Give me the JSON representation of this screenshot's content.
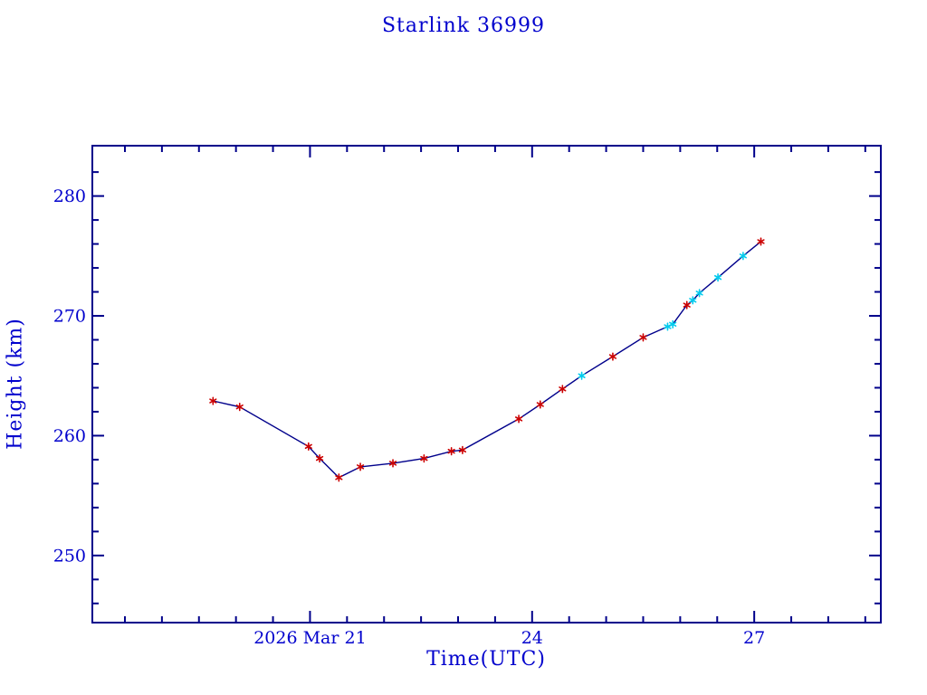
{
  "page": {
    "background": "#ffffff",
    "text_color": "#0000cd",
    "frame_color": "#00008b"
  },
  "chart_data": {
    "type": "line",
    "title": "Starlink 36999",
    "xlabel": "Time(UTC)",
    "ylabel": "Height (km)",
    "x_unit": "day of March 2026, decimal (UTC)",
    "x_range": [
      18.06,
      28.71
    ],
    "y_range": [
      244.4,
      284.2
    ],
    "x_major_ticks": [
      {
        "value": 21,
        "label": "2026 Mar 21"
      },
      {
        "value": 24,
        "label": "24"
      },
      {
        "value": 27,
        "label": "27"
      }
    ],
    "x_minor_step": 0.5,
    "y_major_ticks": [
      {
        "value": 250,
        "label": "250"
      },
      {
        "value": 260,
        "label": "260"
      },
      {
        "value": 270,
        "label": "270"
      },
      {
        "value": 280,
        "label": "280"
      }
    ],
    "y_minor_step": 2,
    "grid": false,
    "legend": null,
    "colors": {
      "line": "#00008b",
      "red_marker": "#cc0000",
      "cyan_marker": "#00ccee"
    },
    "series": [
      {
        "name": "height",
        "points": [
          {
            "x": 19.69,
            "y": 262.9,
            "marker": "red"
          },
          {
            "x": 20.05,
            "y": 262.4,
            "marker": "red"
          },
          {
            "x": 20.98,
            "y": 259.1,
            "marker": "red"
          },
          {
            "x": 21.13,
            "y": 258.1,
            "marker": "red"
          },
          {
            "x": 21.39,
            "y": 256.5,
            "marker": "red"
          },
          {
            "x": 21.68,
            "y": 257.4,
            "marker": "red"
          },
          {
            "x": 22.12,
            "y": 257.7,
            "marker": "red"
          },
          {
            "x": 22.54,
            "y": 258.1,
            "marker": "red"
          },
          {
            "x": 22.91,
            "y": 258.7,
            "marker": "red"
          },
          {
            "x": 23.06,
            "y": 258.8,
            "marker": "red"
          },
          {
            "x": 23.82,
            "y": 261.4,
            "marker": "red"
          },
          {
            "x": 24.11,
            "y": 262.6,
            "marker": "red"
          },
          {
            "x": 24.41,
            "y": 263.9,
            "marker": "red"
          },
          {
            "x": 24.67,
            "y": 265.0,
            "marker": "cyan"
          },
          {
            "x": 25.09,
            "y": 266.6,
            "marker": "red"
          },
          {
            "x": 25.5,
            "y": 268.2,
            "marker": "red"
          },
          {
            "x": 25.83,
            "y": 269.1,
            "marker": "cyan"
          },
          {
            "x": 25.9,
            "y": 269.3,
            "marker": "cyan"
          },
          {
            "x": 26.09,
            "y": 270.9,
            "marker": "red"
          },
          {
            "x": 26.17,
            "y": 271.3,
            "marker": "cyan"
          },
          {
            "x": 26.26,
            "y": 271.9,
            "marker": "cyan"
          },
          {
            "x": 26.51,
            "y": 273.2,
            "marker": "cyan"
          },
          {
            "x": 26.85,
            "y": 275.0,
            "marker": "cyan"
          },
          {
            "x": 27.09,
            "y": 276.2,
            "marker": "red"
          }
        ]
      }
    ]
  }
}
